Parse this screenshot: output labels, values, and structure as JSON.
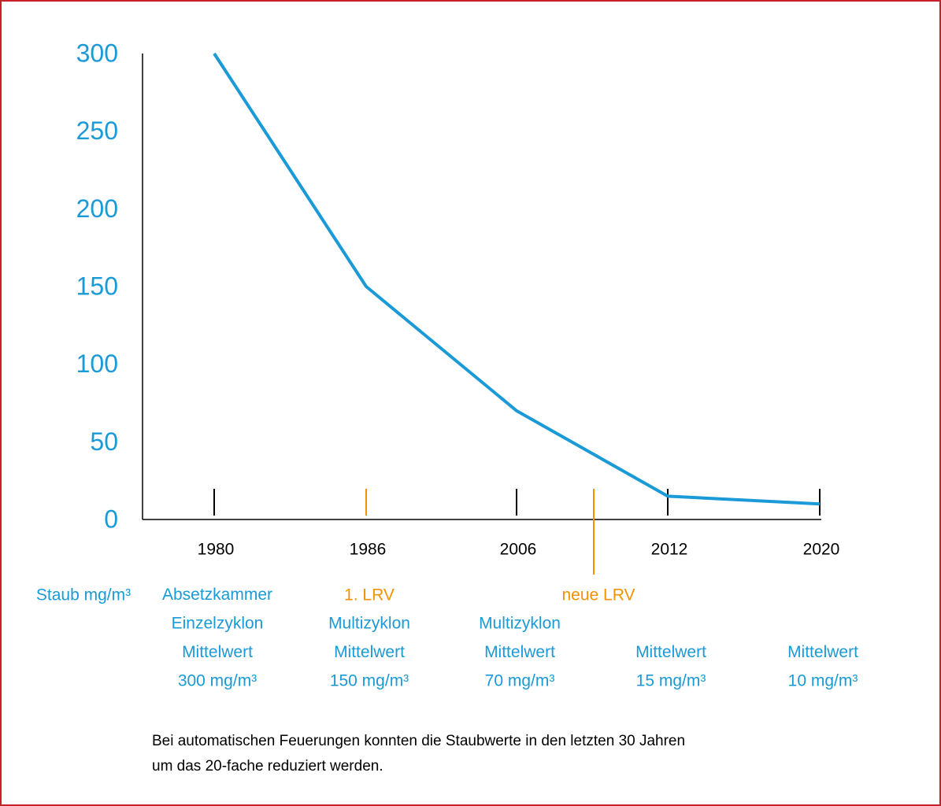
{
  "chart_data": {
    "type": "line",
    "y_label": "Staub mg/m³",
    "categories": [
      "1980",
      "1986",
      "2006",
      "2012",
      "2020"
    ],
    "series": [
      {
        "name": "Staub",
        "color": "#1a9ad6",
        "values": [
          300,
          150,
          70,
          15,
          10
        ]
      }
    ],
    "ylim": [
      0,
      300
    ],
    "yticks": [
      0,
      50,
      100,
      150,
      200,
      250,
      300
    ],
    "descriptions": [
      [
        "Absetzkammer",
        "Einzelzyklon",
        "Mittelwert",
        "300 mg/m³"
      ],
      [
        "Multizyklon",
        "Mittelwert",
        "150 mg/m³"
      ],
      [
        "Multizyklon",
        "Mittelwert",
        "70 mg/m³"
      ],
      [
        "Mittelwert",
        "15 mg/m³"
      ],
      [
        "Mittelwert",
        "10 mg/m³"
      ]
    ],
    "markers": [
      {
        "label": "1. LRV",
        "color": "#f39200"
      },
      {
        "label": "neue LRV",
        "color": "#f39200"
      }
    ],
    "note": [
      "Bei automatischen Feuerungen konnten die Staubwerte in den letzten 30 Jahren",
      "um das 20-fache reduziert werden."
    ],
    "text_color": "#1a9ad6",
    "grid": false
  }
}
